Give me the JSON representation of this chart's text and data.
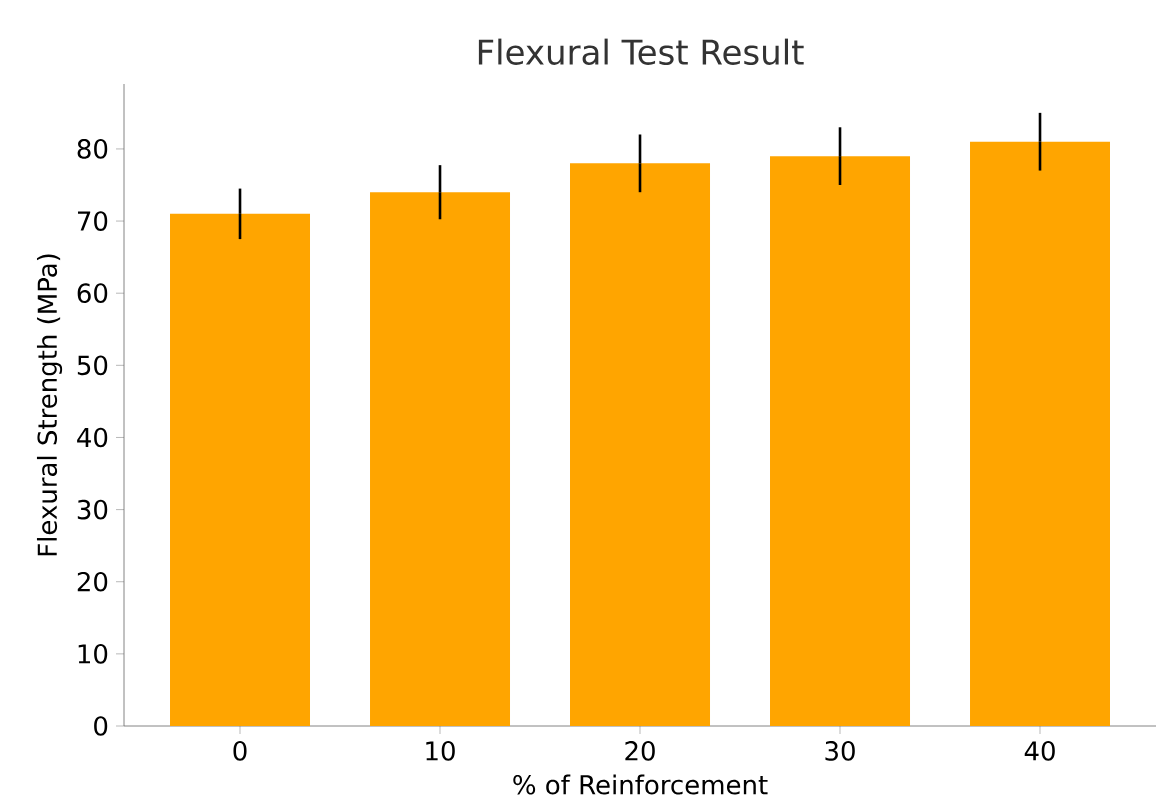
{
  "chart_data": {
    "type": "bar",
    "title": "Flexural Test Result",
    "xlabel": "% of Reinforcement",
    "ylabel": "Flexural Strength (MPa)",
    "categories": [
      "0",
      "10",
      "20",
      "30",
      "40"
    ],
    "values": [
      71,
      74,
      78,
      79,
      81
    ],
    "errors": [
      3.5,
      3.75,
      4,
      4,
      4
    ],
    "color": "#ffa500",
    "ylim": [
      0,
      89
    ],
    "yticks": [
      0,
      10,
      20,
      30,
      40,
      50,
      60,
      70,
      80
    ]
  }
}
